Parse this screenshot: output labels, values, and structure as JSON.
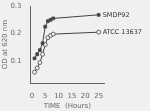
{
  "chart_data": {
    "type": "line",
    "xlabel": "TIME  (Hours)",
    "ylabel": "OD at 620 nm",
    "xlim": [
      -0.5,
      27
    ],
    "ylim": [
      0.02,
      0.3
    ],
    "xticks": [
      0,
      5,
      10,
      15,
      20,
      25
    ],
    "yticks": [
      0.1,
      0.2,
      0.3
    ],
    "grid": false,
    "x": [
      1,
      2,
      3,
      4,
      5,
      6,
      7,
      8,
      25
    ],
    "series": [
      {
        "name": "SMDP92",
        "color": "#444444",
        "marker": "filled square",
        "values": [
          0.11,
          0.125,
          0.14,
          0.165,
          0.225,
          0.245,
          0.25,
          0.255,
          0.268
        ]
      },
      {
        "name": "ATCC 13637",
        "color": "#444444",
        "marker": "open circle",
        "values": [
          0.06,
          0.075,
          0.095,
          0.125,
          0.16,
          0.185,
          0.193,
          0.198,
          0.205
        ]
      }
    ]
  }
}
